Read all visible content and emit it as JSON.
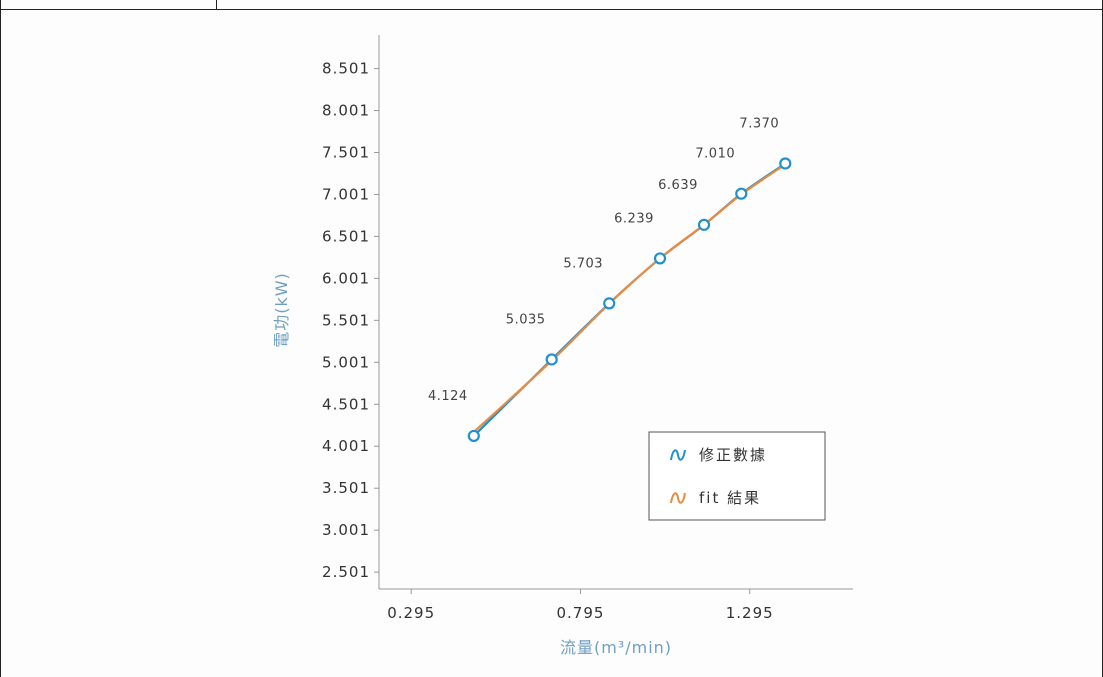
{
  "chart_data": {
    "type": "line",
    "xlabel": "流量(m³/min)",
    "ylabel": "電功(kW)",
    "xlim": [
      0.2,
      1.6
    ],
    "ylim": [
      2.3,
      8.901
    ],
    "x_ticks": [
      "0.295",
      "0.795",
      "1.295"
    ],
    "y_ticks": [
      "2.501",
      "3.001",
      "3.501",
      "4.001",
      "4.501",
      "5.001",
      "5.501",
      "6.001",
      "6.501",
      "7.001",
      "7.501",
      "8.001",
      "8.501"
    ],
    "legend_position": "bottom-right",
    "series": [
      {
        "name": "修正數據",
        "color": "#1e90d0",
        "marker": "circle",
        "x": [
          0.48,
          0.71,
          0.88,
          1.03,
          1.16,
          1.27,
          1.4
        ],
        "values": [
          4.124,
          5.035,
          5.703,
          6.239,
          6.639,
          7.01,
          7.37
        ],
        "labels": [
          "4.124",
          "5.035",
          "5.703",
          "6.239",
          "6.639",
          "7.010",
          "7.370"
        ]
      },
      {
        "name": "fit 結果",
        "color": "#ea8a3e",
        "marker": "none",
        "x": [
          0.48,
          0.71,
          0.88,
          1.03,
          1.16,
          1.27,
          1.4
        ],
        "values": [
          4.17,
          5.02,
          5.7,
          6.24,
          6.64,
          7.0,
          7.36
        ]
      }
    ]
  }
}
